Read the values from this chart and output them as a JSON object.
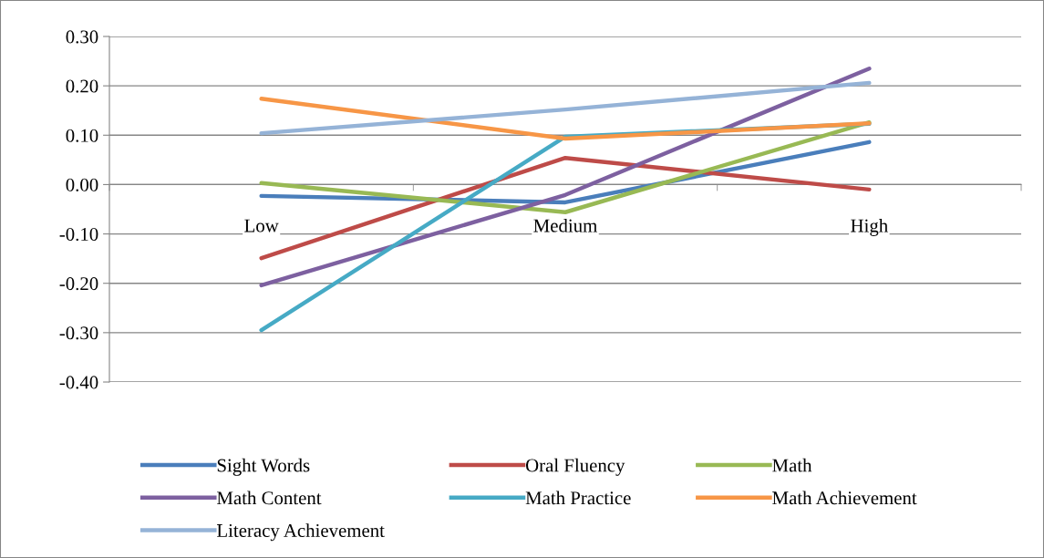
{
  "chart_data": {
    "type": "line",
    "categories": [
      "Low",
      "Medium",
      "High"
    ],
    "series": [
      {
        "name": "Sight Words",
        "color": "#4a7ebb",
        "values": [
          -0.023,
          -0.036,
          0.086
        ]
      },
      {
        "name": "Oral Fluency",
        "color": "#be4b48",
        "values": [
          -0.149,
          0.054,
          -0.01
        ]
      },
      {
        "name": "Math",
        "color": "#98b954",
        "values": [
          0.003,
          -0.056,
          0.126
        ]
      },
      {
        "name": "Math Content",
        "color": "#7d60a0",
        "values": [
          -0.204,
          -0.021,
          0.235
        ]
      },
      {
        "name": "Math Practice",
        "color": "#46aac5",
        "values": [
          -0.295,
          0.097,
          0.123
        ]
      },
      {
        "name": "Math Achievement",
        "color": "#f79646",
        "values": [
          0.174,
          0.093,
          0.124
        ]
      },
      {
        "name": "Literacy Achievement",
        "color": "#95b3d7",
        "values": [
          0.104,
          0.152,
          0.206
        ]
      }
    ],
    "ylim": [
      -0.4,
      0.3
    ],
    "yticks": [
      {
        "value": -0.4,
        "label": "-0.40"
      },
      {
        "value": -0.3,
        "label": "-0.30"
      },
      {
        "value": -0.2,
        "label": "-0.20"
      },
      {
        "value": -0.1,
        "label": "-0.10"
      },
      {
        "value": 0,
        "label": "0.00"
      },
      {
        "value": 0.1,
        "label": "0.10"
      },
      {
        "value": 0.2,
        "label": "0.20"
      },
      {
        "value": 0.3,
        "label": "0.30"
      }
    ],
    "grid": "y",
    "legend": "bottom",
    "marker": "none",
    "line_style": "solid"
  }
}
